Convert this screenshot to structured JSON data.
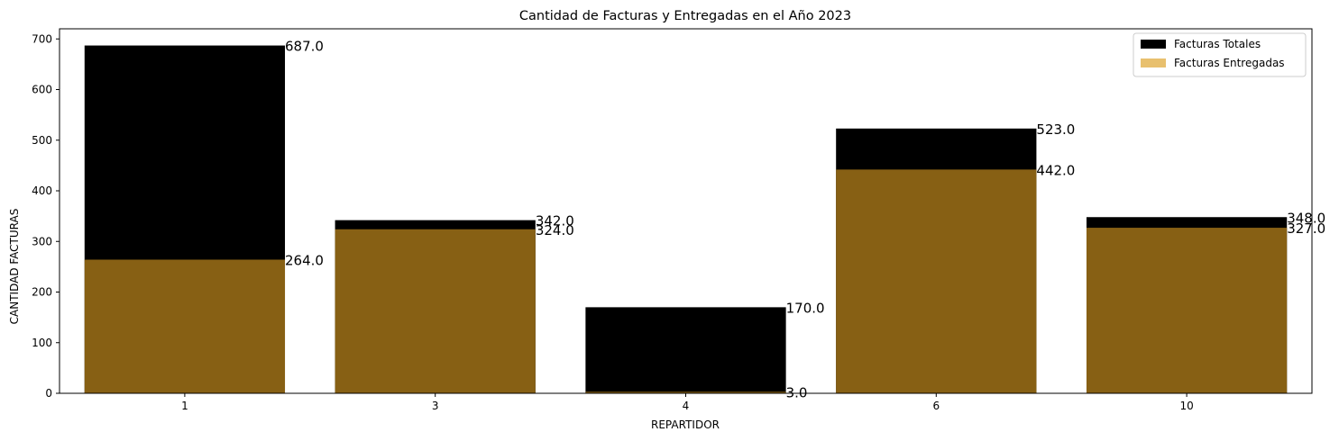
{
  "chart_data": {
    "type": "bar",
    "title": "Cantidad de Facturas y Entregadas en el Año 2023",
    "xlabel": "REPARTIDOR",
    "ylabel": "CANTIDAD FACTURAS",
    "categories": [
      "1",
      "3",
      "4",
      "6",
      "10"
    ],
    "ylim": [
      0,
      720
    ],
    "yticks": [
      0,
      100,
      200,
      300,
      400,
      500,
      600,
      700
    ],
    "grid": false,
    "legend_position": "top-right",
    "series": [
      {
        "name": "Facturas Totales",
        "color": "#000000",
        "values": [
          687,
          342,
          170,
          523,
          348
        ],
        "value_labels": [
          "687.0",
          "342.0",
          "170.0",
          "523.0",
          "348.0"
        ]
      },
      {
        "name": "Facturas Entregadas",
        "color": "#876014",
        "legend_color": "#E8C06E",
        "values": [
          264,
          324,
          3,
          442,
          327
        ],
        "value_labels": [
          "264.0",
          "324.0",
          "3.0",
          "442.0",
          "327.0"
        ]
      }
    ]
  }
}
